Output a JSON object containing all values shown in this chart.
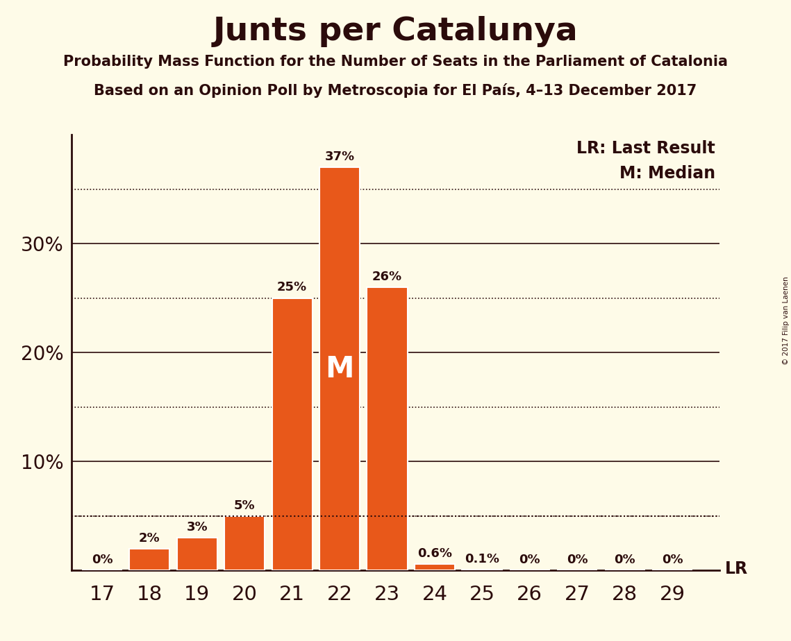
{
  "title": "Junts per Catalunya",
  "subtitle1": "Probability Mass Function for the Number of Seats in the Parliament of Catalonia",
  "subtitle2": "Based on an Opinion Poll by Metroscopia for El País, 4–13 December 2017",
  "copyright": "© 2017 Filip van Laenen",
  "seats": [
    17,
    18,
    19,
    20,
    21,
    22,
    23,
    24,
    25,
    26,
    27,
    28,
    29
  ],
  "probabilities": [
    0.0,
    2.0,
    3.0,
    5.0,
    25.0,
    37.0,
    26.0,
    0.6,
    0.1,
    0.0,
    0.0,
    0.0,
    0.0
  ],
  "bar_color": "#E8581A",
  "bar_edge_color": "#FFFFFF",
  "background_color": "#FEFBE8",
  "text_color": "#2B0B0B",
  "median_seat": 22,
  "lr_value": 5.0,
  "lr_label": "LR",
  "median_label": "M",
  "legend_lr": "LR: Last Result",
  "legend_m": "M: Median",
  "yticks": [
    0,
    10,
    20,
    30
  ],
  "ymax": 40,
  "solid_lines": [
    10,
    20,
    30
  ],
  "dotted_lines": [
    5,
    15,
    25,
    35
  ],
  "bar_labels": [
    "0%",
    "2%",
    "3%",
    "5%",
    "25%",
    "37%",
    "26%",
    "0.6%",
    "0.1%",
    "0%",
    "0%",
    "0%",
    "0%"
  ]
}
